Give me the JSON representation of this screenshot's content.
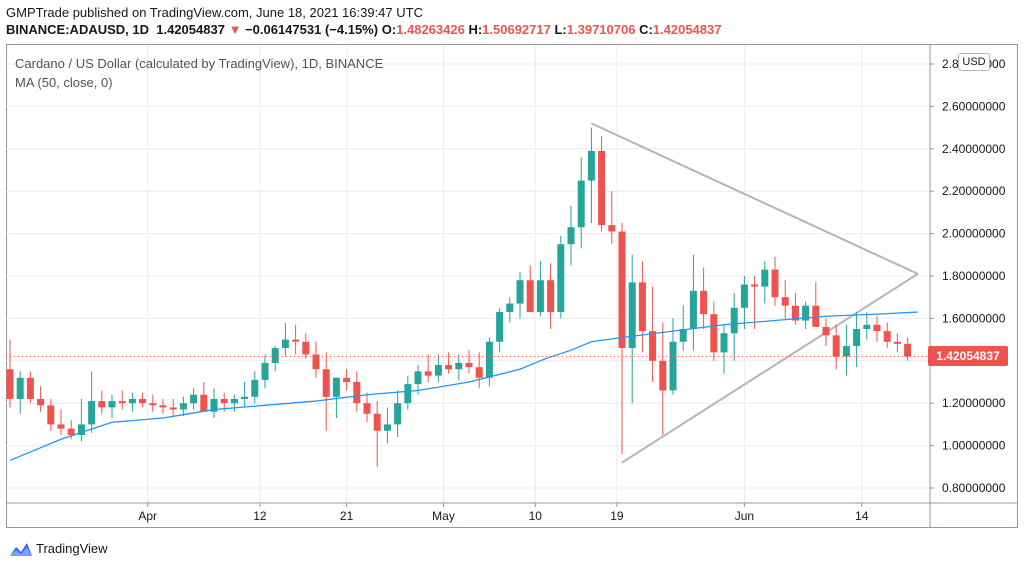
{
  "header": {
    "line1": "GMPTrade published on TradingView.com, June 18, 2021 16:39:47 UTC",
    "symbol": "BINANCE:ADAUSD, 1D",
    "last": "1.42054837",
    "arrow": "▼",
    "change": "−0.06147531 (−4.15%)",
    "o_label": "O:",
    "o_value": "1.48263426",
    "h_label": "H:",
    "h_value": "1.50692717",
    "l_label": "L:",
    "l_value": "1.39710706",
    "c_label": "C:",
    "c_value": "1.42054837"
  },
  "legend": {
    "title": "Cardano / US Dollar (calculated by TradingView), 1D, BINANCE",
    "ma": "MA (50, close, 0)"
  },
  "currency_button": "USD",
  "last_price_label": "1.42054837",
  "brand": "TradingView",
  "colors": {
    "up": "#26a69a",
    "down": "#ef5350",
    "ma": "#2196f3",
    "triangle": "#b2b5be",
    "grid": "#e9ecf1"
  },
  "chart_data": {
    "type": "candlestick",
    "title": "Cardano / US Dollar (calculated by TradingView), 1D, BINANCE",
    "ylim": [
      0.7,
      2.9
    ],
    "y_ticks": [
      "0.80000000",
      "1.00000000",
      "1.20000000",
      "1.40000000",
      "1.60000000",
      "1.80000000",
      "2.00000000",
      "2.20000000",
      "2.40000000",
      "2.60000000",
      "2.80000000"
    ],
    "x_ticks": [
      "Apr",
      "12",
      "21",
      "May",
      "10",
      "19",
      "Jun",
      "14"
    ],
    "grid": true,
    "last_price": 1.42054837,
    "candles_ohlc": [
      [
        1.36,
        1.5,
        1.18,
        1.22
      ],
      [
        1.22,
        1.35,
        1.15,
        1.32
      ],
      [
        1.32,
        1.35,
        1.2,
        1.22
      ],
      [
        1.22,
        1.28,
        1.16,
        1.19
      ],
      [
        1.19,
        1.22,
        1.07,
        1.1
      ],
      [
        1.1,
        1.17,
        1.05,
        1.08
      ],
      [
        1.08,
        1.12,
        1.03,
        1.05
      ],
      [
        1.05,
        1.22,
        1.02,
        1.1
      ],
      [
        1.1,
        1.35,
        1.06,
        1.21
      ],
      [
        1.21,
        1.26,
        1.15,
        1.18
      ],
      [
        1.18,
        1.24,
        1.13,
        1.21
      ],
      [
        1.21,
        1.26,
        1.17,
        1.2
      ],
      [
        1.2,
        1.25,
        1.16,
        1.22
      ],
      [
        1.22,
        1.25,
        1.18,
        1.2
      ],
      [
        1.2,
        1.24,
        1.16,
        1.19
      ],
      [
        1.19,
        1.22,
        1.15,
        1.18
      ],
      [
        1.18,
        1.22,
        1.14,
        1.17
      ],
      [
        1.17,
        1.23,
        1.14,
        1.2
      ],
      [
        1.2,
        1.27,
        1.17,
        1.24
      ],
      [
        1.24,
        1.3,
        1.2,
        1.16
      ],
      [
        1.16,
        1.27,
        1.13,
        1.22
      ],
      [
        1.22,
        1.25,
        1.16,
        1.2
      ],
      [
        1.2,
        1.24,
        1.16,
        1.22
      ],
      [
        1.22,
        1.3,
        1.18,
        1.23
      ],
      [
        1.23,
        1.35,
        1.2,
        1.31
      ],
      [
        1.31,
        1.43,
        1.27,
        1.39
      ],
      [
        1.39,
        1.47,
        1.35,
        1.46
      ],
      [
        1.46,
        1.58,
        1.42,
        1.5
      ],
      [
        1.5,
        1.57,
        1.43,
        1.49
      ],
      [
        1.49,
        1.53,
        1.41,
        1.43
      ],
      [
        1.43,
        1.49,
        1.32,
        1.36
      ],
      [
        1.36,
        1.44,
        1.07,
        1.23
      ],
      [
        1.23,
        1.32,
        1.13,
        1.32
      ],
      [
        1.32,
        1.36,
        1.26,
        1.3
      ],
      [
        1.3,
        1.35,
        1.16,
        1.2
      ],
      [
        1.2,
        1.25,
        1.11,
        1.15
      ],
      [
        1.15,
        1.21,
        0.9,
        1.07
      ],
      [
        1.07,
        1.18,
        1.01,
        1.1
      ],
      [
        1.1,
        1.26,
        1.04,
        1.2
      ],
      [
        1.2,
        1.33,
        1.17,
        1.29
      ],
      [
        1.29,
        1.38,
        1.24,
        1.35
      ],
      [
        1.35,
        1.43,
        1.3,
        1.33
      ],
      [
        1.33,
        1.43,
        1.3,
        1.38
      ],
      [
        1.38,
        1.44,
        1.34,
        1.36
      ],
      [
        1.36,
        1.43,
        1.31,
        1.39
      ],
      [
        1.39,
        1.45,
        1.34,
        1.37
      ],
      [
        1.37,
        1.44,
        1.27,
        1.32
      ],
      [
        1.32,
        1.51,
        1.28,
        1.49
      ],
      [
        1.49,
        1.65,
        1.44,
        1.63
      ],
      [
        1.63,
        1.7,
        1.58,
        1.67
      ],
      [
        1.67,
        1.82,
        1.6,
        1.78
      ],
      [
        1.78,
        1.85,
        1.63,
        1.63
      ],
      [
        1.63,
        1.87,
        1.61,
        1.78
      ],
      [
        1.78,
        1.86,
        1.55,
        1.63
      ],
      [
        1.63,
        1.99,
        1.6,
        1.95
      ],
      [
        1.95,
        2.13,
        1.85,
        2.03
      ],
      [
        2.03,
        2.36,
        1.93,
        2.25
      ],
      [
        2.25,
        2.5,
        2.05,
        2.39
      ],
      [
        2.39,
        2.46,
        2.01,
        2.04
      ],
      [
        2.04,
        2.2,
        1.95,
        2.01
      ],
      [
        2.01,
        2.05,
        0.96,
        1.46
      ],
      [
        1.46,
        1.9,
        1.2,
        1.77
      ],
      [
        1.77,
        1.87,
        1.44,
        1.54
      ],
      [
        1.54,
        1.75,
        1.3,
        1.4
      ],
      [
        1.4,
        1.58,
        1.05,
        1.26
      ],
      [
        1.26,
        1.6,
        1.24,
        1.49
      ],
      [
        1.49,
        1.66,
        1.45,
        1.55
      ],
      [
        1.55,
        1.9,
        1.45,
        1.73
      ],
      [
        1.73,
        1.84,
        1.55,
        1.62
      ],
      [
        1.62,
        1.68,
        1.4,
        1.44
      ],
      [
        1.44,
        1.57,
        1.34,
        1.53
      ],
      [
        1.53,
        1.72,
        1.4,
        1.65
      ],
      [
        1.65,
        1.8,
        1.55,
        1.76
      ],
      [
        1.76,
        1.8,
        1.55,
        1.75
      ],
      [
        1.75,
        1.87,
        1.67,
        1.83
      ],
      [
        1.83,
        1.89,
        1.66,
        1.7
      ],
      [
        1.7,
        1.78,
        1.6,
        1.66
      ],
      [
        1.66,
        1.72,
        1.57,
        1.59
      ],
      [
        1.59,
        1.68,
        1.55,
        1.66
      ],
      [
        1.66,
        1.77,
        1.56,
        1.56
      ],
      [
        1.56,
        1.6,
        1.47,
        1.52
      ],
      [
        1.52,
        1.57,
        1.36,
        1.42
      ],
      [
        1.42,
        1.57,
        1.33,
        1.47
      ],
      [
        1.47,
        1.63,
        1.37,
        1.55
      ],
      [
        1.55,
        1.63,
        1.5,
        1.57
      ],
      [
        1.57,
        1.61,
        1.49,
        1.54
      ],
      [
        1.54,
        1.58,
        1.46,
        1.49
      ],
      [
        1.49,
        1.53,
        1.44,
        1.48
      ],
      [
        1.48,
        1.51,
        1.4,
        1.42
      ]
    ],
    "ma50": [
      [
        0,
        0.93
      ],
      [
        10,
        1.03
      ],
      [
        20,
        1.11
      ],
      [
        30,
        1.13
      ],
      [
        35,
        1.15
      ],
      [
        40,
        1.17
      ],
      [
        50,
        1.19
      ],
      [
        60,
        1.21
      ],
      [
        70,
        1.24
      ],
      [
        80,
        1.26
      ],
      [
        90,
        1.3
      ],
      [
        100,
        1.36
      ],
      [
        105,
        1.41
      ],
      [
        110,
        1.45
      ],
      [
        114,
        1.49
      ],
      [
        120,
        1.51
      ],
      [
        130,
        1.54
      ],
      [
        140,
        1.57
      ],
      [
        150,
        1.59
      ],
      [
        160,
        1.61
      ],
      [
        170,
        1.62
      ],
      [
        178,
        1.63
      ]
    ],
    "triangle_lines": [
      [
        [
          114,
          2.52
        ],
        [
          178,
          1.81
        ]
      ],
      [
        [
          120,
          0.92
        ],
        [
          178,
          1.81
        ]
      ]
    ],
    "x_tick_positions": [
      27,
      49,
      66,
      85,
      103,
      119,
      144,
      167
    ]
  }
}
